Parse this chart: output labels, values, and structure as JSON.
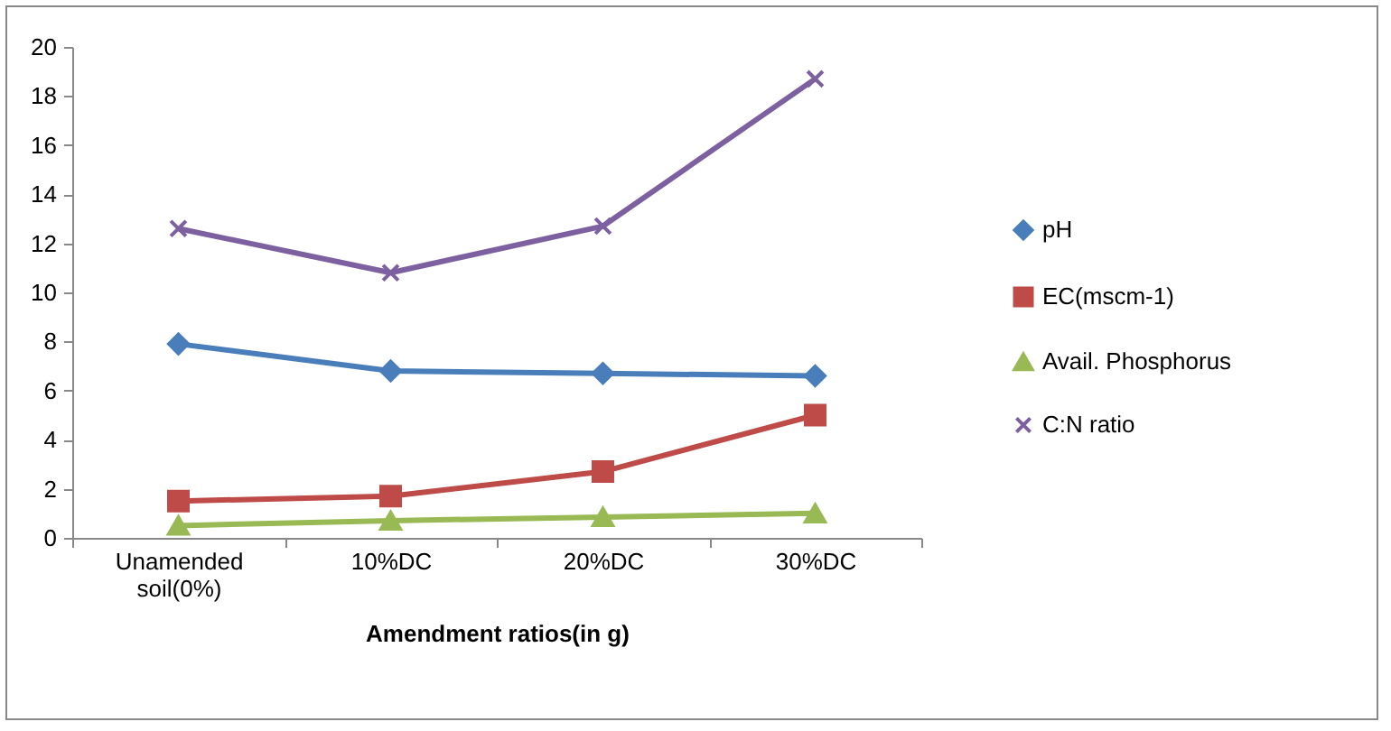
{
  "chart_data": {
    "type": "line",
    "xlabel": "Amendment ratios(in g)",
    "categories": [
      "Unamended soil(0%)",
      "10%DC",
      "20%DC",
      "30%DC"
    ],
    "series": [
      {
        "name": "pH",
        "color": "#4a7ebb",
        "marker": "diamond",
        "values": [
          7.9,
          6.8,
          6.7,
          6.6
        ]
      },
      {
        "name": "EC(mscm-1)",
        "color": "#be4b48",
        "marker": "square",
        "values": [
          1.5,
          1.7,
          2.7,
          5.0
        ]
      },
      {
        "name": "Avail. Phosphorus",
        "color": "#98b954",
        "marker": "triangle",
        "values": [
          0.5,
          0.7,
          0.85,
          1.0
        ]
      },
      {
        "name": "C:N ratio",
        "color": "#7d60a0",
        "marker": "cross",
        "values": [
          12.6,
          10.8,
          12.7,
          18.7
        ]
      }
    ],
    "ylim": [
      0,
      20
    ],
    "yticks": [
      0,
      2,
      4,
      6,
      8,
      10,
      12,
      14,
      16,
      18,
      20
    ],
    "grid": false,
    "legend": "right"
  }
}
